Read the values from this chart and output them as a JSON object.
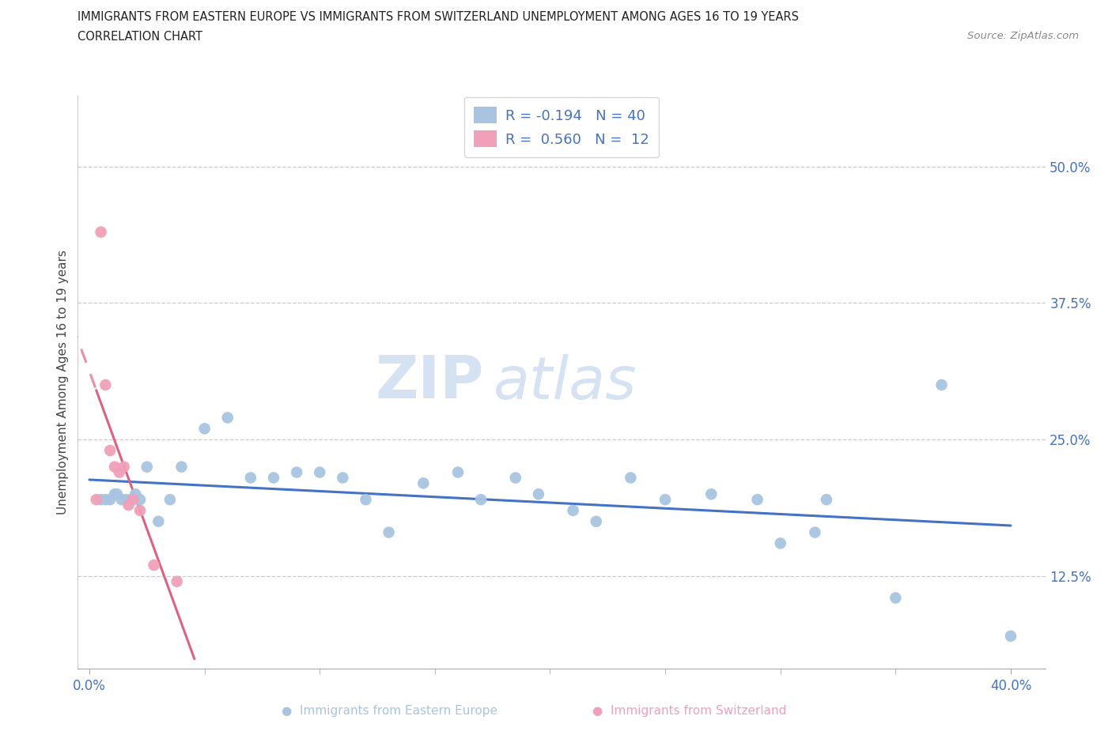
{
  "title_line1": "IMMIGRANTS FROM EASTERN EUROPE VS IMMIGRANTS FROM SWITZERLAND UNEMPLOYMENT AMONG AGES 16 TO 19 YEARS",
  "title_line2": "CORRELATION CHART",
  "source_text": "Source: ZipAtlas.com",
  "ylabel": "Unemployment Among Ages 16 to 19 years",
  "ytick_labels": [
    "50.0%",
    "37.5%",
    "25.0%",
    "12.5%"
  ],
  "ytick_values": [
    0.5,
    0.375,
    0.25,
    0.125
  ],
  "xtick_labels": [
    "0.0%",
    "40.0%"
  ],
  "xtick_values": [
    0.0,
    0.4
  ],
  "xlim": [
    -0.005,
    0.415
  ],
  "ylim": [
    0.04,
    0.565
  ],
  "legend_r1": "R = -0.194   N = 40",
  "legend_r2": "R =  0.560   N =  12",
  "color_eastern": "#a8c4e0",
  "color_switzerland": "#f0a0b8",
  "trendline_eastern_color": "#4472c4",
  "trendline_switzerland_color": "#e06080",
  "watermark_zip": "ZIP",
  "watermark_atlas": "atlas",
  "eastern_europe_x": [
    0.005,
    0.007,
    0.009,
    0.011,
    0.012,
    0.014,
    0.016,
    0.018,
    0.02,
    0.022,
    0.025,
    0.03,
    0.035,
    0.04,
    0.05,
    0.06,
    0.07,
    0.08,
    0.09,
    0.1,
    0.11,
    0.12,
    0.13,
    0.145,
    0.16,
    0.17,
    0.185,
    0.195,
    0.21,
    0.22,
    0.235,
    0.25,
    0.27,
    0.29,
    0.3,
    0.315,
    0.32,
    0.35,
    0.37,
    0.4
  ],
  "eastern_europe_y": [
    0.195,
    0.195,
    0.195,
    0.2,
    0.2,
    0.195,
    0.195,
    0.195,
    0.2,
    0.195,
    0.225,
    0.175,
    0.195,
    0.225,
    0.26,
    0.27,
    0.215,
    0.215,
    0.22,
    0.22,
    0.215,
    0.195,
    0.165,
    0.21,
    0.22,
    0.195,
    0.215,
    0.2,
    0.185,
    0.175,
    0.215,
    0.195,
    0.2,
    0.195,
    0.155,
    0.165,
    0.195,
    0.105,
    0.3,
    0.07
  ],
  "switzerland_x": [
    0.003,
    0.005,
    0.007,
    0.009,
    0.011,
    0.013,
    0.015,
    0.017,
    0.019,
    0.022,
    0.028,
    0.038
  ],
  "switzerland_y": [
    0.195,
    0.44,
    0.3,
    0.24,
    0.225,
    0.22,
    0.225,
    0.19,
    0.195,
    0.185,
    0.135,
    0.12
  ]
}
